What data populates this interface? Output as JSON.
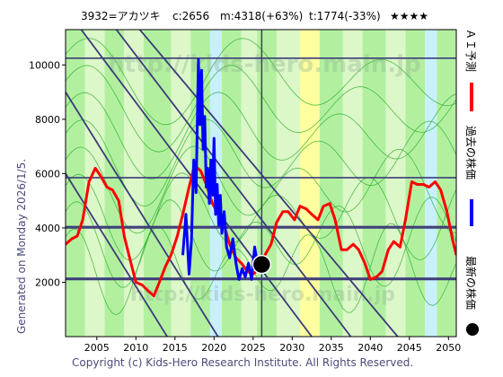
{
  "header": {
    "ticker": "3932=アカツキ",
    "current": "c:2656",
    "model": "m:4318(+63%)",
    "theory": "t:1774(-33%)",
    "rating": "★★★★"
  },
  "side_label": "Generated on Monday 2026/1/5.",
  "footer": "Copyright (c) Kids-Hero Research Institute. All Rights Reserved.",
  "watermark": "http://kids-hero.main.jp",
  "legend": {
    "forecast": "ＡＩ予測",
    "past": "過去の株価",
    "latest": "最新の株価"
  },
  "colors": {
    "forecast": "#ff0000",
    "past": "#0000ff",
    "latest": "#000000",
    "band_green": "#b2f0a0",
    "band_light": "#dcf7c8",
    "band_yellow": "#ffffa0",
    "band_cyan": "#c8f0ff",
    "trend_line": "#3c3c78",
    "green_curve": "#22aa22"
  },
  "chart_data": {
    "type": "line",
    "title": "",
    "xlabel": "",
    "ylabel": "",
    "xlim": [
      2001,
      2051
    ],
    "ylim": [
      0,
      11300
    ],
    "x_ticks": [
      2005,
      2010,
      2015,
      2020,
      2025,
      2030,
      2035,
      2040,
      2045,
      2050
    ],
    "y_ticks": [
      2000,
      4000,
      6000,
      8000,
      10000
    ],
    "horizontal_levels": [
      2100,
      2150,
      4000,
      4050,
      5850,
      10250
    ],
    "diagonal_lines": [
      {
        "x": [
          2003.0,
          2032.5
        ],
        "y": [
          11300,
          0
        ]
      },
      {
        "x": [
          2007.5,
          2037.5
        ],
        "y": [
          11300,
          0
        ]
      },
      {
        "x": [
          2010.5,
          2043.5
        ],
        "y": [
          11300,
          0
        ]
      },
      {
        "x": [
          2001.0,
          2020.5
        ],
        "y": [
          9000,
          0
        ]
      },
      {
        "x": [
          2001.0,
          2014.0
        ],
        "y": [
          6000,
          0
        ]
      }
    ],
    "series": [
      {
        "name": "ＡＩ予測",
        "x": [
          2001.0,
          2001.8,
          2002.5,
          2003.2,
          2004.0,
          2004.8,
          2005.5,
          2006.3,
          2007.0,
          2007.8,
          2008.5,
          2009.2,
          2010.0,
          2010.8,
          2011.5,
          2012.3,
          2013.0,
          2013.8,
          2014.5,
          2015.3,
          2016.0,
          2016.8,
          2017.5,
          2018.3,
          2019.0,
          2019.8,
          2020.5,
          2021.3,
          2022.0,
          2022.8,
          2023.5,
          2024.3,
          2025.0,
          2025.8,
          2026.5,
          2027.3,
          2028.0,
          2028.8,
          2029.5,
          2030.3,
          2031.0,
          2031.8,
          2032.5,
          2033.3,
          2034.0,
          2034.8,
          2035.5,
          2036.3,
          2037.0,
          2037.8,
          2038.5,
          2039.3,
          2040.0,
          2040.8,
          2041.5,
          2042.3,
          2043.0,
          2043.8,
          2044.5,
          2045.3,
          2046.0,
          2046.8,
          2047.5,
          2048.3,
          2049.0,
          2049.8,
          2050.5,
          2051.0
        ],
        "y": [
          3400,
          3600,
          3700,
          4300,
          5700,
          6200,
          5900,
          5500,
          5400,
          5000,
          3700,
          2900,
          2000,
          1900,
          1700,
          1500,
          2000,
          2600,
          3000,
          3700,
          4500,
          5500,
          6300,
          6100,
          5600,
          4900,
          4500,
          4100,
          3400,
          2900,
          2700,
          2400,
          2300,
          2500,
          3000,
          3400,
          4200,
          4600,
          4600,
          4300,
          4800,
          4700,
          4500,
          4300,
          4800,
          4900,
          4300,
          3200,
          3200,
          3400,
          3200,
          2700,
          2100,
          2200,
          2400,
          3200,
          3500,
          3300,
          4300,
          5700,
          5600,
          5600,
          5500,
          5700,
          5400,
          4600,
          3600,
          3000
        ]
      },
      {
        "name": "過去の株価",
        "x": [
          2016.0,
          2016.4,
          2016.8,
          2017.1,
          2017.4,
          2017.7,
          2018.0,
          2018.2,
          2018.4,
          2018.6,
          2018.8,
          2019.0,
          2019.2,
          2019.4,
          2019.6,
          2019.8,
          2020.0,
          2020.2,
          2020.4,
          2020.6,
          2020.8,
          2021.0,
          2021.3,
          2021.6,
          2022.0,
          2022.4,
          2022.8,
          2023.2,
          2023.6,
          2024.0,
          2024.4,
          2024.8,
          2025.2,
          2025.6,
          2026.0
        ],
        "y": [
          3000,
          4500,
          2300,
          3500,
          6500,
          5300,
          10200,
          7800,
          9800,
          6900,
          8100,
          5500,
          6200,
          4900,
          6500,
          5200,
          7300,
          4500,
          5600,
          4100,
          5200,
          3800,
          4600,
          3300,
          2900,
          3600,
          2700,
          2100,
          2500,
          2200,
          2700,
          2100,
          3300,
          2600,
          2656
        ]
      }
    ],
    "latest_point": {
      "x": 2026.1,
      "y": 2656
    },
    "bands": [
      {
        "from": 2001.0,
        "to": 2003.5,
        "kind": "green"
      },
      {
        "from": 2003.5,
        "to": 2006.0,
        "kind": "light"
      },
      {
        "from": 2006.0,
        "to": 2008.5,
        "kind": "green"
      },
      {
        "from": 2008.5,
        "to": 2011.0,
        "kind": "light"
      },
      {
        "from": 2011.0,
        "to": 2014.5,
        "kind": "green"
      },
      {
        "from": 2014.5,
        "to": 2017.0,
        "kind": "light"
      },
      {
        "from": 2017.0,
        "to": 2019.5,
        "kind": "green"
      },
      {
        "from": 2019.5,
        "to": 2021.0,
        "kind": "cyan"
      },
      {
        "from": 2021.0,
        "to": 2023.5,
        "kind": "green"
      },
      {
        "from": 2023.5,
        "to": 2025.5,
        "kind": "light"
      },
      {
        "from": 2025.5,
        "to": 2028.0,
        "kind": "green"
      },
      {
        "from": 2028.0,
        "to": 2031.0,
        "kind": "light"
      },
      {
        "from": 2031.0,
        "to": 2033.5,
        "kind": "yellow"
      },
      {
        "from": 2033.5,
        "to": 2036.5,
        "kind": "green"
      },
      {
        "from": 2036.5,
        "to": 2039.0,
        "kind": "light"
      },
      {
        "from": 2039.0,
        "to": 2042.0,
        "kind": "green"
      },
      {
        "from": 2042.0,
        "to": 2044.5,
        "kind": "light"
      },
      {
        "from": 2044.5,
        "to": 2047.0,
        "kind": "green"
      },
      {
        "from": 2047.0,
        "to": 2048.5,
        "kind": "cyan"
      },
      {
        "from": 2048.5,
        "to": 2051.0,
        "kind": "green"
      }
    ],
    "legend_position": "right"
  }
}
